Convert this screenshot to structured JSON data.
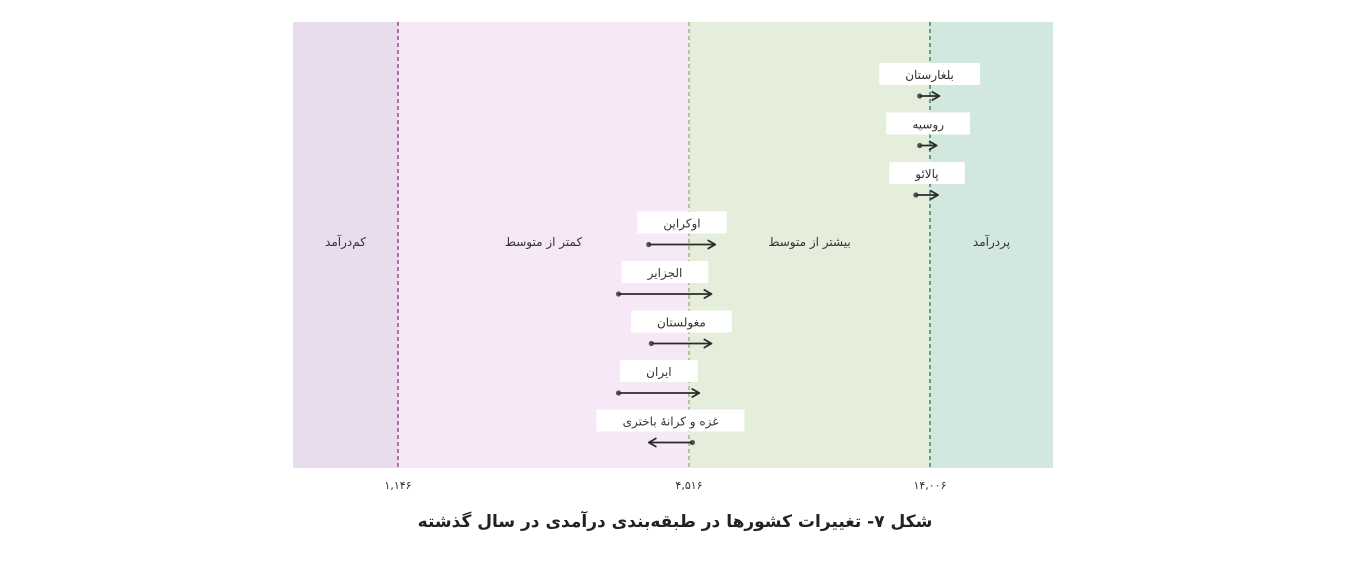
{
  "colors": {
    "low_income": "#e9dcec",
    "lower_middle": "#f6e8f6",
    "upper_middle": "#e4eedb",
    "high_income": "#d2e8de",
    "threshold_line_1": "#9b3c8e",
    "threshold_line_2": "#9cb56d",
    "threshold_line_3": "#2f7d5e",
    "arrow": "#2b2b2b",
    "label_box": "#ffffff",
    "text": "#333333"
  },
  "caption": "شکل ۷- تغییرات کشورها در طبقه‌بندی درآمدی در سال گذشته",
  "chart_data": {
    "type": "arrow-range",
    "x_domain": [
      0,
      18500
    ],
    "thresholds": [
      {
        "value": 1146,
        "label": "۱,۱۴۶"
      },
      {
        "value": 4516,
        "label": "۴,۵۱۶"
      },
      {
        "value": 14006,
        "label": "۱۴,۰۰۶"
      }
    ],
    "regions": [
      {
        "name": "کم‌درآمد",
        "from": 0,
        "to": 1146,
        "color_key": "low_income"
      },
      {
        "name": "کمتر از متوسط",
        "from": 1146,
        "to": 4516,
        "color_key": "lower_middle"
      },
      {
        "name": "بیشتر از متوسط",
        "from": 4516,
        "to": 14006,
        "color_key": "upper_middle"
      },
      {
        "name": "پردرآمد",
        "from": 14006,
        "to": 18500,
        "color_key": "high_income"
      }
    ],
    "countries": [
      {
        "name": "بلغارستان",
        "from": 13600,
        "to": 14350
      },
      {
        "name": "روسیه",
        "from": 13600,
        "to": 14250
      },
      {
        "name": "پالائو",
        "from": 13450,
        "to": 14300
      },
      {
        "name": "اوکراین",
        "from": 4050,
        "to": 5550
      },
      {
        "name": "الجزایر",
        "from": 3700,
        "to": 5400
      },
      {
        "name": "مغولستان",
        "from": 4080,
        "to": 5400
      },
      {
        "name": "ایران",
        "from": 3700,
        "to": 4920
      },
      {
        "name": "غزه و کرانهٔ باختری",
        "from": 4650,
        "to": 4050
      }
    ]
  }
}
